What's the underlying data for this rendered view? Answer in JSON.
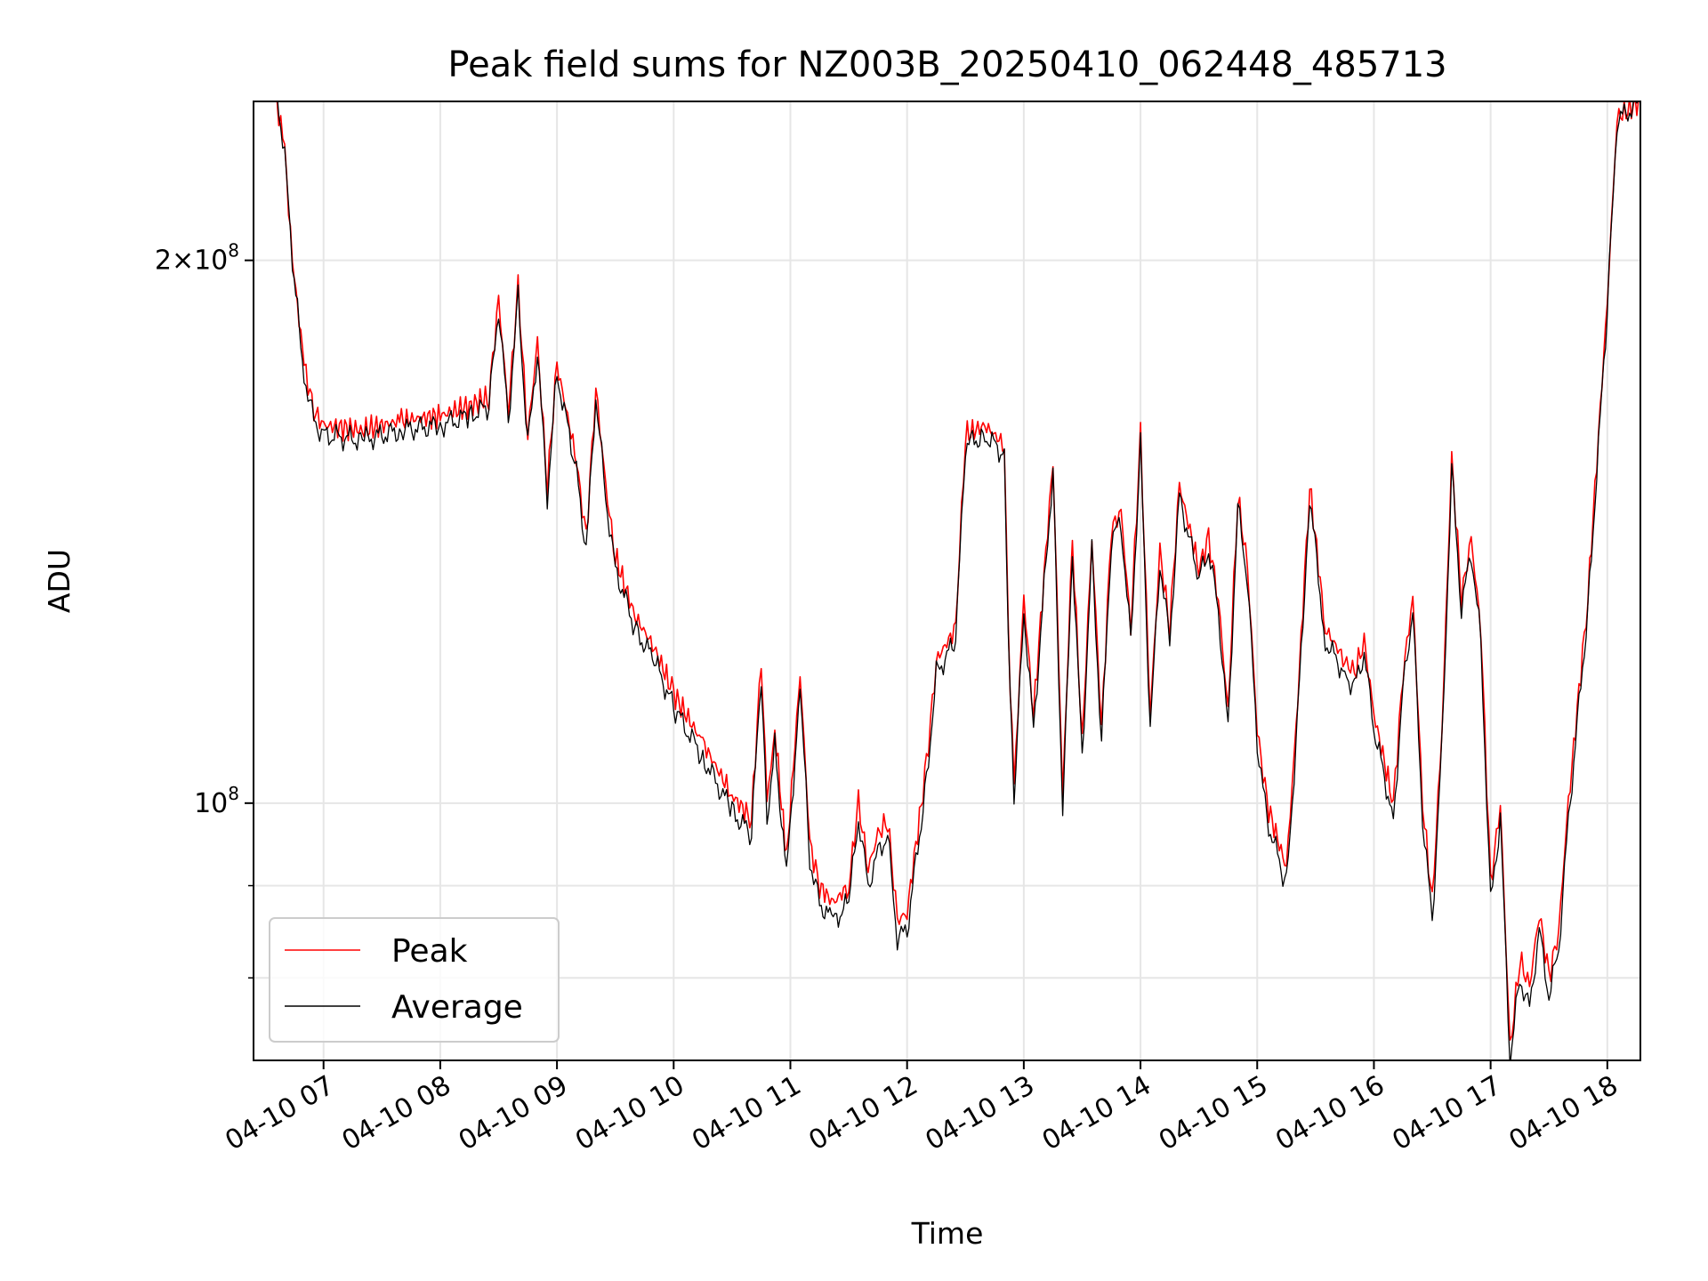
{
  "chart_data": {
    "type": "line",
    "title": "Peak field sums for NZ003B_20250410_062448_485713",
    "xlabel": "Time",
    "ylabel": "ADU",
    "yscale": "log",
    "grid": true,
    "legend_position": "lower-left",
    "xlim": [
      "2025-04-10 06:24",
      "2025-04-10 18:17"
    ],
    "ylim": [
      72000000,
      245000000
    ],
    "x_ticks": [
      "04-10 07",
      "04-10 08",
      "04-10 09",
      "04-10 10",
      "04-10 11",
      "04-10 12",
      "04-10 13",
      "04-10 14",
      "04-10 15",
      "04-10 16",
      "04-10 17",
      "04-10 18"
    ],
    "y_ticks": [
      {
        "value": 100000000,
        "label": "10^8"
      },
      {
        "value": 200000000,
        "label": "2×10^8"
      }
    ],
    "series": [
      {
        "name": "Peak",
        "color": "#ff0000",
        "x": [
          "2025-04-10 06:24",
          "2025-04-10 06:36",
          "2025-04-10 06:40",
          "2025-04-10 06:44",
          "2025-04-10 06:50",
          "2025-04-10 06:55",
          "2025-04-10 07:00",
          "2025-04-10 07:20",
          "2025-04-10 07:40",
          "2025-04-10 08:00",
          "2025-04-10 08:15",
          "2025-04-10 08:25",
          "2025-04-10 08:30",
          "2025-04-10 08:35",
          "2025-04-10 08:40",
          "2025-04-10 08:45",
          "2025-04-10 08:50",
          "2025-04-10 08:55",
          "2025-04-10 09:00",
          "2025-04-10 09:10",
          "2025-04-10 09:15",
          "2025-04-10 09:20",
          "2025-04-10 09:25",
          "2025-04-10 09:30",
          "2025-04-10 09:40",
          "2025-04-10 09:50",
          "2025-04-10 10:00",
          "2025-04-10 10:15",
          "2025-04-10 10:30",
          "2025-04-10 10:40",
          "2025-04-10 10:45",
          "2025-04-10 10:48",
          "2025-04-10 10:52",
          "2025-04-10 10:58",
          "2025-04-10 11:05",
          "2025-04-10 11:10",
          "2025-04-10 11:15",
          "2025-04-10 11:22",
          "2025-04-10 11:30",
          "2025-04-10 11:35",
          "2025-04-10 11:40",
          "2025-04-10 11:45",
          "2025-04-10 11:50",
          "2025-04-10 11:55",
          "2025-04-10 12:00",
          "2025-04-10 12:10",
          "2025-04-10 12:15",
          "2025-04-10 12:25",
          "2025-04-10 12:30",
          "2025-04-10 12:40",
          "2025-04-10 12:50",
          "2025-04-10 12:52",
          "2025-04-10 12:55",
          "2025-04-10 13:00",
          "2025-04-10 13:05",
          "2025-04-10 13:15",
          "2025-04-10 13:20",
          "2025-04-10 13:25",
          "2025-04-10 13:30",
          "2025-04-10 13:35",
          "2025-04-10 13:40",
          "2025-04-10 13:45",
          "2025-04-10 13:50",
          "2025-04-10 13:55",
          "2025-04-10 14:00",
          "2025-04-10 14:05",
          "2025-04-10 14:10",
          "2025-04-10 14:15",
          "2025-04-10 14:20",
          "2025-04-10 14:30",
          "2025-04-10 14:35",
          "2025-04-10 14:40",
          "2025-04-10 14:45",
          "2025-04-10 14:50",
          "2025-04-10 14:55",
          "2025-04-10 15:00",
          "2025-04-10 15:05",
          "2025-04-10 15:15",
          "2025-04-10 15:20",
          "2025-04-10 15:27",
          "2025-04-10 15:35",
          "2025-04-10 15:45",
          "2025-04-10 15:50",
          "2025-04-10 15:55",
          "2025-04-10 16:00",
          "2025-04-10 16:10",
          "2025-04-10 16:15",
          "2025-04-10 16:20",
          "2025-04-10 16:25",
          "2025-04-10 16:30",
          "2025-04-10 16:35",
          "2025-04-10 16:40",
          "2025-04-10 16:45",
          "2025-04-10 16:50",
          "2025-04-10 16:55",
          "2025-04-10 17:00",
          "2025-04-10 17:05",
          "2025-04-10 17:10",
          "2025-04-10 17:15",
          "2025-04-10 17:20",
          "2025-04-10 17:25",
          "2025-04-10 17:30",
          "2025-04-10 17:35",
          "2025-04-10 17:40",
          "2025-04-10 17:50",
          "2025-04-10 18:00",
          "2025-04-10 18:05",
          "2025-04-10 18:17"
        ],
        "y": [
          245000000,
          245000000,
          230000000,
          200000000,
          175000000,
          165000000,
          162000000,
          161000000,
          163000000,
          164000000,
          166000000,
          168000000,
          190000000,
          165000000,
          193000000,
          160000000,
          180000000,
          150000000,
          175000000,
          155000000,
          140000000,
          170000000,
          150000000,
          137000000,
          127000000,
          122000000,
          115000000,
          108000000,
          101000000,
          98000000,
          120000000,
          100000000,
          110000000,
          93000000,
          118000000,
          95000000,
          90000000,
          88000000,
          90000000,
          100000000,
          92000000,
          96000000,
          98000000,
          86000000,
          87000000,
          105000000,
          120000000,
          125000000,
          160000000,
          162000000,
          158000000,
          125000000,
          102000000,
          130000000,
          112000000,
          155000000,
          101000000,
          140000000,
          108000000,
          140000000,
          110000000,
          142000000,
          145000000,
          125000000,
          160000000,
          112000000,
          138000000,
          125000000,
          150000000,
          135000000,
          140000000,
          130000000,
          112000000,
          148000000,
          135000000,
          110000000,
          100000000,
          92000000,
          110000000,
          150000000,
          125000000,
          120000000,
          118000000,
          123000000,
          112000000,
          100000000,
          118000000,
          130000000,
          100000000,
          88000000,
          110000000,
          155000000,
          130000000,
          140000000,
          125000000,
          90000000,
          100000000,
          73000000,
          82000000,
          79000000,
          87000000,
          80000000,
          85000000,
          100000000,
          130000000,
          190000000,
          240000000,
          245000000
        ]
      },
      {
        "name": "Average",
        "color": "#000000",
        "x": [
          "2025-04-10 06:24",
          "2025-04-10 06:36",
          "2025-04-10 06:40",
          "2025-04-10 06:44",
          "2025-04-10 06:50",
          "2025-04-10 06:55",
          "2025-04-10 07:00",
          "2025-04-10 07:20",
          "2025-04-10 07:40",
          "2025-04-10 08:00",
          "2025-04-10 08:15",
          "2025-04-10 08:25",
          "2025-04-10 08:30",
          "2025-04-10 08:35",
          "2025-04-10 08:40",
          "2025-04-10 08:45",
          "2025-04-10 08:50",
          "2025-04-10 08:55",
          "2025-04-10 09:00",
          "2025-04-10 09:10",
          "2025-04-10 09:15",
          "2025-04-10 09:20",
          "2025-04-10 09:25",
          "2025-04-10 09:30",
          "2025-04-10 09:40",
          "2025-04-10 09:50",
          "2025-04-10 10:00",
          "2025-04-10 10:15",
          "2025-04-10 10:30",
          "2025-04-10 10:40",
          "2025-04-10 10:45",
          "2025-04-10 10:48",
          "2025-04-10 10:52",
          "2025-04-10 10:58",
          "2025-04-10 11:05",
          "2025-04-10 11:10",
          "2025-04-10 11:15",
          "2025-04-10 11:22",
          "2025-04-10 11:30",
          "2025-04-10 11:35",
          "2025-04-10 11:40",
          "2025-04-10 11:45",
          "2025-04-10 11:50",
          "2025-04-10 11:55",
          "2025-04-10 12:00",
          "2025-04-10 12:10",
          "2025-04-10 12:15",
          "2025-04-10 12:25",
          "2025-04-10 12:30",
          "2025-04-10 12:40",
          "2025-04-10 12:50",
          "2025-04-10 12:52",
          "2025-04-10 12:55",
          "2025-04-10 13:00",
          "2025-04-10 13:05",
          "2025-04-10 13:15",
          "2025-04-10 13:20",
          "2025-04-10 13:25",
          "2025-04-10 13:30",
          "2025-04-10 13:35",
          "2025-04-10 13:40",
          "2025-04-10 13:45",
          "2025-04-10 13:50",
          "2025-04-10 13:55",
          "2025-04-10 14:00",
          "2025-04-10 14:05",
          "2025-04-10 14:10",
          "2025-04-10 14:15",
          "2025-04-10 14:20",
          "2025-04-10 14:30",
          "2025-04-10 14:35",
          "2025-04-10 14:40",
          "2025-04-10 14:45",
          "2025-04-10 14:50",
          "2025-04-10 14:55",
          "2025-04-10 15:00",
          "2025-04-10 15:05",
          "2025-04-10 15:15",
          "2025-04-10 15:20",
          "2025-04-10 15:27",
          "2025-04-10 15:35",
          "2025-04-10 15:45",
          "2025-04-10 15:50",
          "2025-04-10 15:55",
          "2025-04-10 16:00",
          "2025-04-10 16:10",
          "2025-04-10 16:15",
          "2025-04-10 16:20",
          "2025-04-10 16:25",
          "2025-04-10 16:30",
          "2025-04-10 16:35",
          "2025-04-10 16:40",
          "2025-04-10 16:45",
          "2025-04-10 16:50",
          "2025-04-10 16:55",
          "2025-04-10 17:00",
          "2025-04-10 17:05",
          "2025-04-10 17:10",
          "2025-04-10 17:15",
          "2025-04-10 17:20",
          "2025-04-10 17:25",
          "2025-04-10 17:30",
          "2025-04-10 17:35",
          "2025-04-10 17:40",
          "2025-04-10 17:50",
          "2025-04-10 18:00",
          "2025-04-10 18:05",
          "2025-04-10 18:17"
        ],
        "y": [
          245000000,
          245000000,
          229000000,
          199000000,
          173000000,
          163000000,
          160000000,
          159000000,
          161000000,
          162000000,
          164000000,
          166000000,
          188000000,
          163000000,
          191000000,
          158000000,
          178000000,
          148000000,
          173000000,
          153000000,
          138000000,
          168000000,
          148000000,
          135000000,
          125000000,
          120000000,
          113000000,
          106000000,
          99000000,
          96000000,
          118000000,
          98000000,
          108000000,
          91000000,
          116000000,
          93000000,
          88000000,
          86000000,
          88000000,
          98000000,
          90000000,
          94000000,
          96000000,
          84000000,
          85000000,
          103000000,
          118000000,
          123000000,
          158000000,
          160000000,
          156000000,
          123000000,
          100000000,
          128000000,
          110000000,
          153000000,
          99000000,
          138000000,
          106000000,
          138000000,
          108000000,
          140000000,
          143000000,
          123000000,
          158000000,
          110000000,
          136000000,
          123000000,
          148000000,
          133000000,
          138000000,
          128000000,
          110000000,
          146000000,
          133000000,
          108000000,
          98000000,
          90000000,
          108000000,
          148000000,
          123000000,
          118000000,
          116000000,
          121000000,
          110000000,
          98000000,
          116000000,
          128000000,
          98000000,
          86000000,
          108000000,
          153000000,
          128000000,
          138000000,
          123000000,
          88000000,
          98000000,
          72000000,
          80000000,
          77000000,
          85000000,
          78000000,
          83000000,
          98000000,
          128000000,
          188000000,
          239000000,
          245000000
        ]
      }
    ]
  }
}
